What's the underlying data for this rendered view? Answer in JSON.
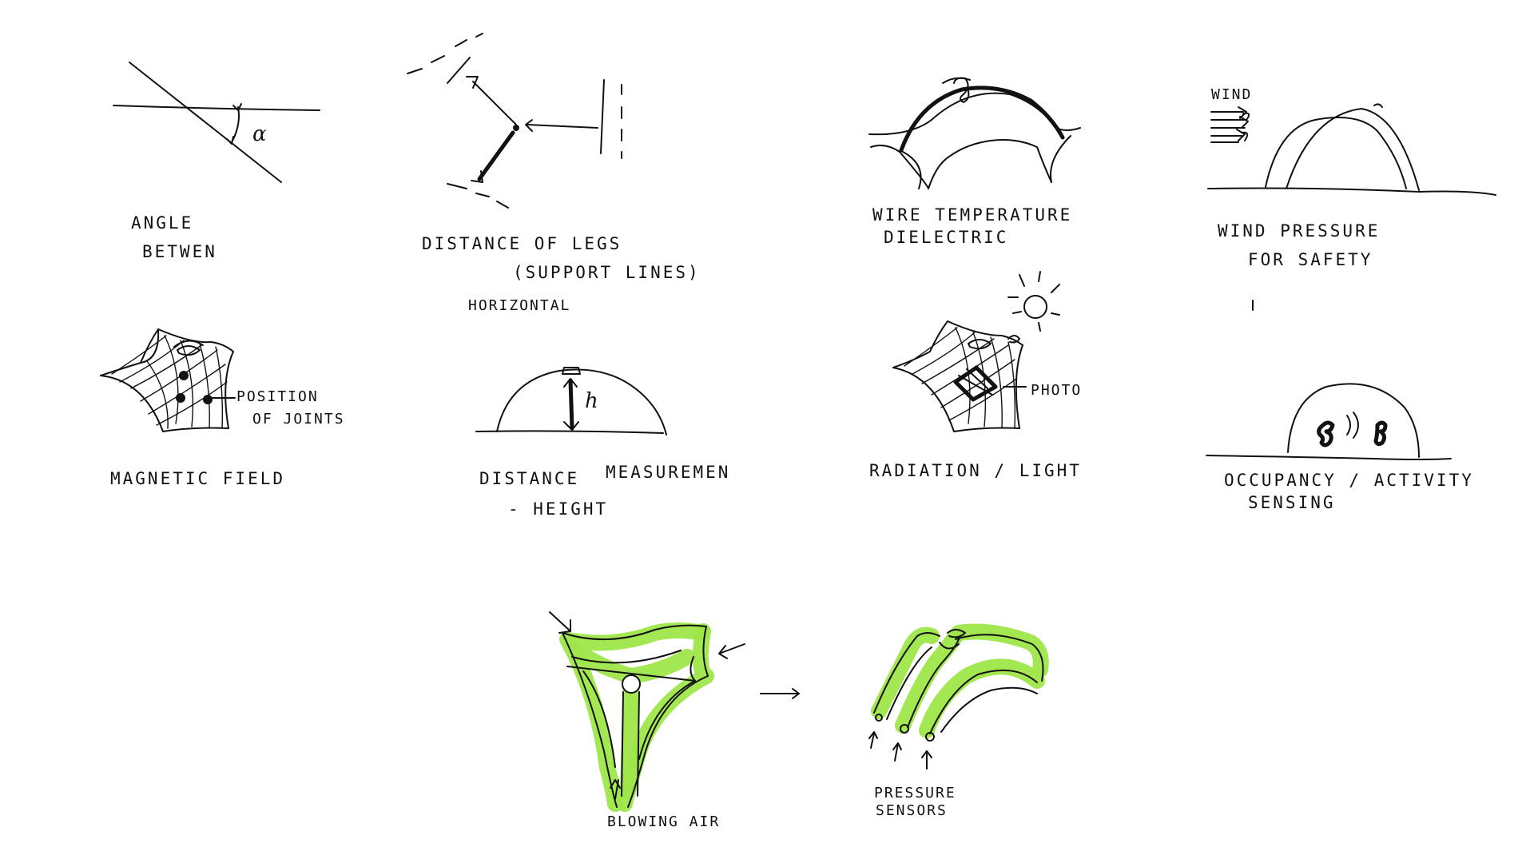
{
  "colors": {
    "accent": "#9ee64a",
    "ink": "#111111",
    "background": "#ffffff"
  },
  "sketches": [
    {
      "id": "angle",
      "label_lines": [
        "ANGLE",
        "BETWEN"
      ],
      "symbol": "α"
    },
    {
      "id": "distance-of-legs",
      "label_lines": [
        "DISTANCE OF LEGS",
        "(SUPPORT LINES)",
        "HORIZONTAL"
      ]
    },
    {
      "id": "wire-temperature",
      "label_lines": [
        "WIRE TEMPERATURE",
        "DIELECTRIC"
      ]
    },
    {
      "id": "wind-pressure",
      "label_lines": [
        "WIND PRESSURE",
        "FOR SAFETY"
      ],
      "annotation": "WIND"
    },
    {
      "id": "magnetic-field",
      "label_lines": [
        "MAGNETIC FIELD"
      ],
      "annotation_lines": [
        "POSITION",
        "OF JOINTS"
      ]
    },
    {
      "id": "distance-height",
      "label_lines": [
        "DISTANCE",
        "MEASUREMEN",
        "- HEIGHT"
      ],
      "symbol": "h"
    },
    {
      "id": "radiation-light",
      "label_lines": [
        "RADIATION / LIGHT"
      ],
      "annotation": "PHOTO"
    },
    {
      "id": "occupancy",
      "label_lines": [
        "OCCUPANCY / ACTIVITY",
        "SENSING"
      ]
    },
    {
      "id": "blowing-air",
      "label_lines": [
        "BLOWING AIR"
      ]
    },
    {
      "id": "pressure-sensors",
      "label_lines": [
        "PRESSURE",
        "SENSORS"
      ]
    }
  ]
}
